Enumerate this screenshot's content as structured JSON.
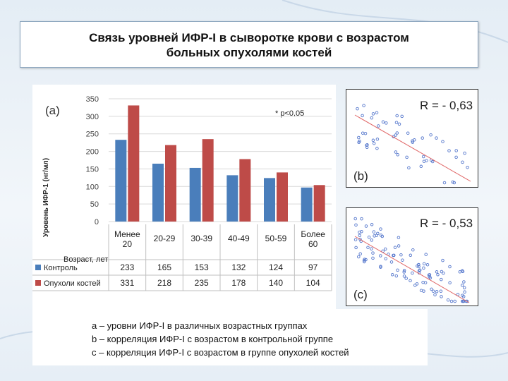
{
  "title": {
    "line1": "Связь уровней ИФР-I в сыворотке крови с возрастом",
    "line2": "больных опухолями костей"
  },
  "panel_a": {
    "label": "(a)",
    "annotation": "* p<0,05",
    "row_header": "Возраст, лет"
  },
  "captions": {
    "a": "а – уровни ИФР-I в различных возрастных группах",
    "b": "b – корреляция ИФР-I с возрастом в контрольной группе",
    "c": "с – корреляция ИФР-I с возрастом в группе опухолей костей"
  },
  "colors": {
    "control": "#4a7ebb",
    "tumor": "#be4b48",
    "trend": "#e06666",
    "point": "#5577cc"
  },
  "chart_data": [
    {
      "type": "bar",
      "categories": [
        "Менее 20",
        "20-29",
        "30-39",
        "40-49",
        "50-59",
        "Более 60"
      ],
      "category_lines": [
        [
          "Менее",
          "20"
        ],
        [
          "20-29"
        ],
        [
          "30-39"
        ],
        [
          "40-49"
        ],
        [
          "50-59"
        ],
        [
          "Более",
          "60"
        ]
      ],
      "series": [
        {
          "name": "Контроль",
          "values": [
            233,
            165,
            153,
            132,
            124,
            97
          ]
        },
        {
          "name": "Опухоли костей",
          "values": [
            331,
            218,
            235,
            178,
            140,
            104
          ]
        }
      ],
      "ylabel": "Уровень ИФР-1 (нг/мл)",
      "ylim": [
        0,
        350
      ],
      "yticks": [
        0,
        50,
        100,
        150,
        200,
        250,
        300,
        350
      ],
      "grid": true,
      "data_table": true
    },
    {
      "type": "scatter",
      "label": "(b)",
      "r_text": "R = - 0,63",
      "trend": "decreasing"
    },
    {
      "type": "scatter",
      "label": "(c)",
      "r_text": "R = - 0,53",
      "trend": "decreasing"
    }
  ]
}
